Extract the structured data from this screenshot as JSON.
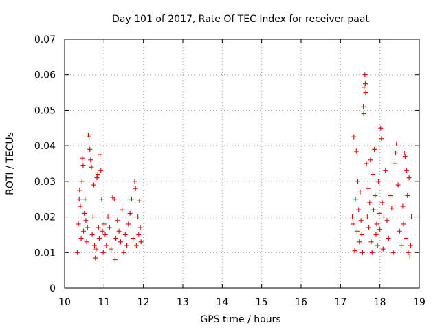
{
  "chart_data": {
    "type": "scatter",
    "title": "Day 101 of 2017, Rate Of TEC Index for receiver paat",
    "xlabel": "GPS time / hours",
    "ylabel": "ROTI / TECUs",
    "xlim": [
      10,
      19
    ],
    "ylim": [
      0,
      0.07
    ],
    "xticks": [
      "10",
      "11",
      "12",
      "13",
      "14",
      "15",
      "16",
      "17",
      "18",
      "19"
    ],
    "yticks": [
      "0",
      "0.01",
      "0.02",
      "0.03",
      "0.04",
      "0.05",
      "0.06",
      "0.07"
    ],
    "grid": true,
    "marker": "+",
    "color": "#e00000",
    "series": [
      {
        "points": [
          [
            10.32,
            0.01
          ],
          [
            10.35,
            0.018
          ],
          [
            10.37,
            0.025
          ],
          [
            10.38,
            0.0275
          ],
          [
            10.4,
            0.023
          ],
          [
            10.42,
            0.014
          ],
          [
            10.44,
            0.03
          ],
          [
            10.45,
            0.0365
          ],
          [
            10.47,
            0.0345
          ],
          [
            10.48,
            0.016
          ],
          [
            10.5,
            0.021
          ],
          [
            10.52,
            0.025
          ],
          [
            10.54,
            0.019
          ],
          [
            10.56,
            0.013
          ],
          [
            10.58,
            0.017
          ],
          [
            10.6,
            0.043
          ],
          [
            10.62,
            0.0425
          ],
          [
            10.64,
            0.039
          ],
          [
            10.66,
            0.036
          ],
          [
            10.68,
            0.034
          ],
          [
            10.7,
            0.015
          ],
          [
            10.72,
            0.02
          ],
          [
            10.74,
            0.029
          ],
          [
            10.76,
            0.012
          ],
          [
            10.78,
            0.0085
          ],
          [
            10.8,
            0.011
          ],
          [
            10.82,
            0.031
          ],
          [
            10.84,
            0.032
          ],
          [
            10.86,
            0.017
          ],
          [
            10.88,
            0.014
          ],
          [
            10.9,
            0.0375
          ],
          [
            10.92,
            0.033
          ],
          [
            10.94,
            0.025
          ],
          [
            10.96,
            0.016
          ],
          [
            10.98,
            0.01
          ],
          [
            11.0,
            0.018
          ],
          [
            11.03,
            0.015
          ],
          [
            11.06,
            0.012
          ],
          [
            11.1,
            0.02
          ],
          [
            11.14,
            0.017
          ],
          [
            11.18,
            0.011
          ],
          [
            11.22,
            0.0255
          ],
          [
            11.26,
            0.025
          ],
          [
            11.28,
            0.008
          ],
          [
            11.3,
            0.014
          ],
          [
            11.34,
            0.019
          ],
          [
            11.38,
            0.016
          ],
          [
            11.42,
            0.013
          ],
          [
            11.46,
            0.022
          ],
          [
            11.5,
            0.01
          ],
          [
            11.54,
            0.015
          ],
          [
            11.58,
            0.012
          ],
          [
            11.62,
            0.018
          ],
          [
            11.66,
            0.021
          ],
          [
            11.7,
            0.025
          ],
          [
            11.74,
            0.014
          ],
          [
            11.78,
            0.03
          ],
          [
            11.8,
            0.028
          ],
          [
            11.82,
            0.012
          ],
          [
            11.86,
            0.02
          ],
          [
            11.88,
            0.015
          ],
          [
            11.9,
            0.0245
          ],
          [
            11.92,
            0.017
          ],
          [
            11.94,
            0.013
          ],
          [
            17.3,
            0.02
          ],
          [
            17.32,
            0.018
          ],
          [
            17.34,
            0.0425
          ],
          [
            17.36,
            0.0105
          ],
          [
            17.38,
            0.025
          ],
          [
            17.4,
            0.0385
          ],
          [
            17.42,
            0.016
          ],
          [
            17.44,
            0.03
          ],
          [
            17.46,
            0.022
          ],
          [
            17.48,
            0.013
          ],
          [
            17.5,
            0.027
          ],
          [
            17.52,
            0.019
          ],
          [
            17.54,
            0.015
          ],
          [
            17.56,
            0.01
          ],
          [
            17.58,
            0.051
          ],
          [
            17.59,
            0.049
          ],
          [
            17.6,
            0.0565
          ],
          [
            17.62,
            0.06
          ],
          [
            17.63,
            0.0575
          ],
          [
            17.64,
            0.055
          ],
          [
            17.66,
            0.035
          ],
          [
            17.68,
            0.02
          ],
          [
            17.7,
            0.028
          ],
          [
            17.72,
            0.017
          ],
          [
            17.74,
            0.024
          ],
          [
            17.76,
            0.036
          ],
          [
            17.78,
            0.013
          ],
          [
            17.8,
            0.01
          ],
          [
            17.82,
            0.032
          ],
          [
            17.84,
            0.022
          ],
          [
            17.86,
            0.039
          ],
          [
            17.88,
            0.026
          ],
          [
            17.9,
            0.015
          ],
          [
            17.92,
            0.018
          ],
          [
            17.94,
            0.012
          ],
          [
            17.96,
            0.03
          ],
          [
            17.98,
            0.021
          ],
          [
            18.0,
            0.0165
          ],
          [
            18.02,
            0.045
          ],
          [
            18.04,
            0.042
          ],
          [
            18.06,
            0.024
          ],
          [
            18.08,
            0.011
          ],
          [
            18.1,
            0.02
          ],
          [
            18.14,
            0.033
          ],
          [
            18.18,
            0.019
          ],
          [
            18.22,
            0.014
          ],
          [
            18.26,
            0.026
          ],
          [
            18.3,
            0.0225
          ],
          [
            18.34,
            0.01
          ],
          [
            18.38,
            0.035
          ],
          [
            18.4,
            0.038
          ],
          [
            18.42,
            0.0405
          ],
          [
            18.46,
            0.029
          ],
          [
            18.5,
            0.016
          ],
          [
            18.54,
            0.012
          ],
          [
            18.58,
            0.023
          ],
          [
            18.6,
            0.018
          ],
          [
            18.62,
            0.038
          ],
          [
            18.64,
            0.037
          ],
          [
            18.66,
            0.014
          ],
          [
            18.68,
            0.033
          ],
          [
            18.7,
            0.026
          ],
          [
            18.72,
            0.01
          ],
          [
            18.74,
            0.031
          ],
          [
            18.76,
            0.009
          ],
          [
            18.78,
            0.012
          ],
          [
            18.8,
            0.02
          ]
        ]
      }
    ]
  }
}
